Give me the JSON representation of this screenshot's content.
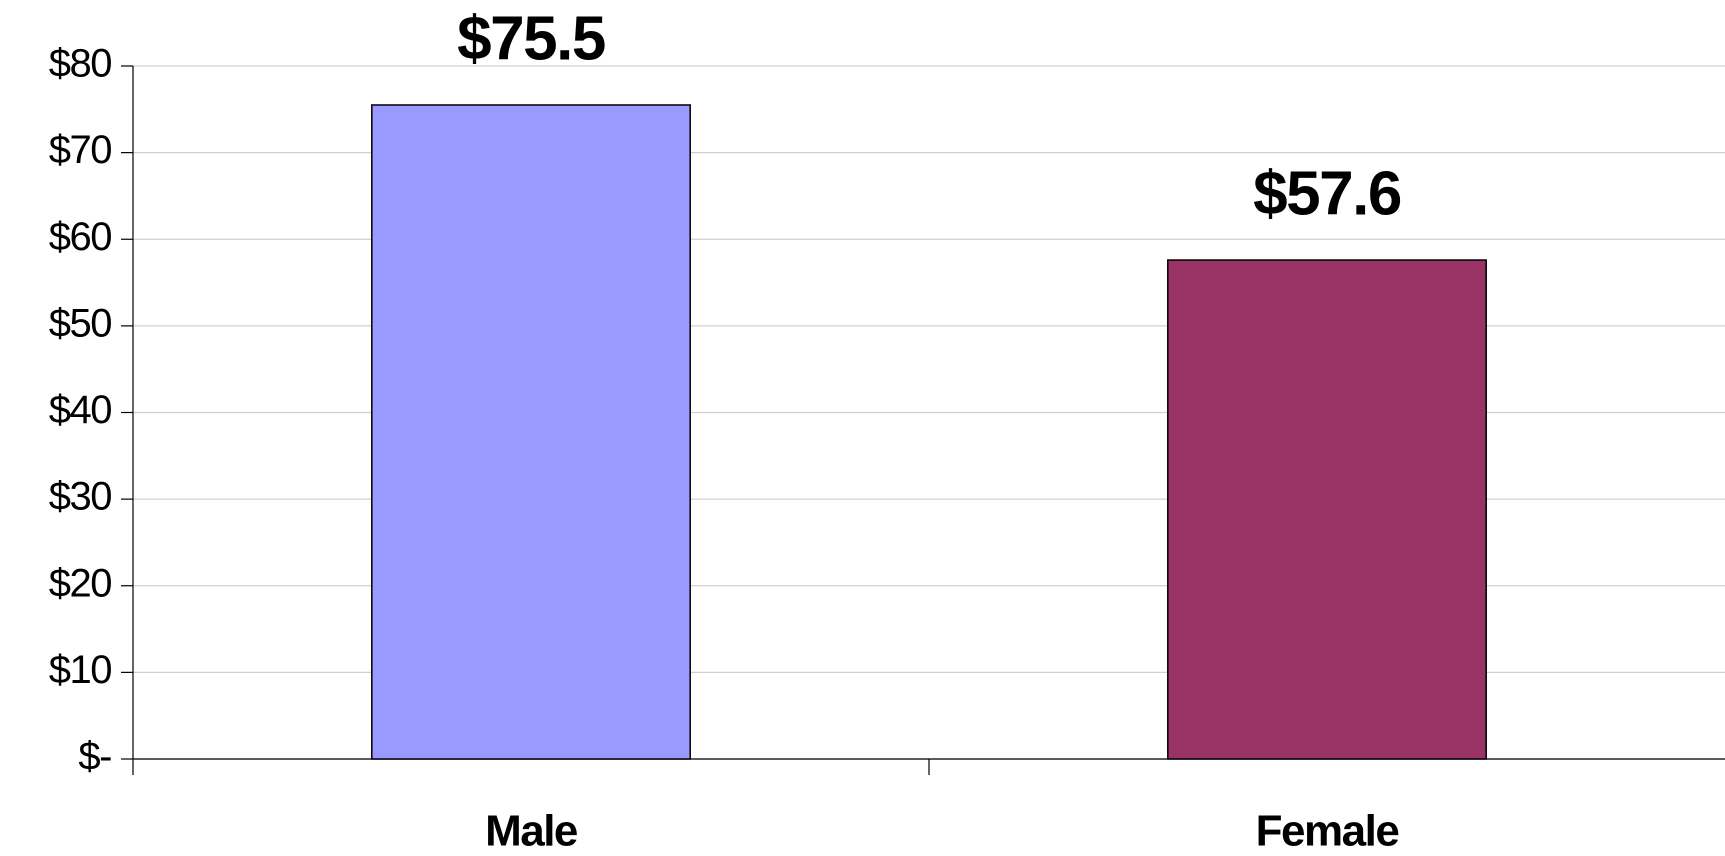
{
  "chart_data": {
    "type": "bar",
    "categories": [
      "Male",
      "Female"
    ],
    "values": [
      75.5,
      57.6
    ],
    "value_labels": [
      "$75.5",
      "$57.6"
    ],
    "colors": [
      "#9999ff",
      "#993366"
    ],
    "ylim": [
      0,
      80
    ],
    "yticks": [
      {
        "value": 0,
        "label": "$-"
      },
      {
        "value": 10,
        "label": "$10"
      },
      {
        "value": 20,
        "label": "$20"
      },
      {
        "value": 30,
        "label": "$30"
      },
      {
        "value": 40,
        "label": "$40"
      },
      {
        "value": 50,
        "label": "$50"
      },
      {
        "value": 60,
        "label": "$60"
      },
      {
        "value": 70,
        "label": "$70"
      },
      {
        "value": 80,
        "label": "$80"
      }
    ],
    "grid": true
  }
}
